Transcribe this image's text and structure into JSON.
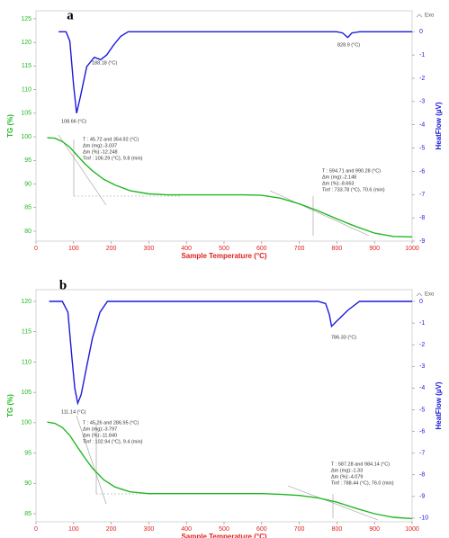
{
  "chart_data": [
    {
      "type": "line",
      "panel_label": "a",
      "xlabel": "Sample Temperature (°C)",
      "ylabel": "TG (%)",
      "y2label": "HeatFlow (µV)",
      "legend": "Exo",
      "xlim": [
        0,
        1000
      ],
      "xticks": [
        0,
        100,
        200,
        300,
        400,
        500,
        600,
        700,
        800,
        900,
        1000
      ],
      "ylim": [
        77.9,
        126.7
      ],
      "yticks": [
        80,
        85,
        90,
        95,
        100,
        105,
        110,
        115,
        120,
        125
      ],
      "y2lim": [
        -9,
        0.9
      ],
      "y2ticks": [
        0,
        -1,
        -2,
        -3,
        -4,
        -5,
        -6,
        -7,
        -8,
        -9
      ],
      "series": [
        {
          "color": "#22b822",
          "axis": "y",
          "x": [
            30,
            50,
            70,
            90,
            110,
            130,
            150,
            180,
            210,
            250,
            300,
            350,
            400,
            450,
            500,
            550,
            600,
            650,
            700,
            750,
            800,
            850,
            900,
            950,
            1000
          ],
          "values": [
            99.8,
            99.7,
            99.0,
            97.8,
            96.0,
            94.3,
            92.8,
            91.0,
            89.8,
            88.6,
            87.9,
            87.7,
            87.7,
            87.7,
            87.7,
            87.7,
            87.6,
            87.0,
            85.8,
            84.3,
            82.6,
            81.0,
            79.6,
            78.9,
            78.8
          ]
        },
        {
          "color": "#1a1adb",
          "axis": "y2",
          "x": [
            60,
            80,
            90,
            100,
            108,
            118,
            135,
            155,
            172,
            188,
            205,
            225,
            245,
            300,
            400,
            500,
            600,
            700,
            800,
            815,
            829,
            840,
            860,
            1000
          ],
          "values": [
            0,
            0,
            -0.4,
            -2.3,
            -3.5,
            -2.8,
            -1.5,
            -1.1,
            -1.2,
            -1.0,
            -0.6,
            -0.2,
            0,
            0,
            0,
            0,
            0,
            0,
            0,
            -0.05,
            -0.25,
            -0.05,
            0,
            0
          ]
        }
      ],
      "annotations": [
        [
          "108.66 (°C)"
        ],
        [
          "188.18 (°C)"
        ],
        [
          "828.9 (°C)"
        ],
        [
          "T : 45.72 and 354.92 (°C)",
          "Δm (mg):-3.037",
          "Δm (%):-12.248",
          "Tinf : 106.29 (°C), 9.8 (min)"
        ],
        [
          "T : 594.71 and 990.28 (°C)",
          "Δm (mg):-2.148",
          "Δm (%):-8.663",
          "Tinf : 733.78 (°C), 70.6 (min)"
        ]
      ]
    },
    {
      "type": "line",
      "panel_label": "b",
      "xlabel": "Sample Temperature (°C)",
      "ylabel": "TG (%)",
      "y2label": "HeatFlow (µV)",
      "legend": "Exo",
      "xlim": [
        0,
        1000
      ],
      "xticks": [
        0,
        100,
        200,
        300,
        400,
        500,
        600,
        700,
        800,
        900,
        1000
      ],
      "ylim": [
        83.66,
        121.93
      ],
      "yticks": [
        85,
        90,
        95,
        100,
        105,
        110,
        115,
        120
      ],
      "y2lim": [
        -10.17,
        0.54
      ],
      "y2ticks": [
        0,
        -1,
        -2,
        -3,
        -4,
        -5,
        -6,
        -7,
        -8,
        -9,
        -10
      ],
      "series": [
        {
          "color": "#22b822",
          "axis": "y",
          "x": [
            30,
            50,
            70,
            90,
            110,
            130,
            150,
            180,
            210,
            250,
            300,
            350,
            400,
            500,
            600,
            650,
            700,
            750,
            800,
            850,
            900,
            950,
            1000
          ],
          "values": [
            100.1,
            99.9,
            99.2,
            97.9,
            96.0,
            94.2,
            92.5,
            90.6,
            89.4,
            88.6,
            88.3,
            88.3,
            88.3,
            88.3,
            88.3,
            88.2,
            88.0,
            87.6,
            86.9,
            85.9,
            85.0,
            84.4,
            84.2
          ]
        },
        {
          "color": "#1a1adb",
          "axis": "y2",
          "x": [
            35,
            70,
            85,
            95,
            103,
            111,
            120,
            135,
            150,
            170,
            190,
            300,
            500,
            700,
            750,
            770,
            780,
            786,
            800,
            830,
            860,
            1000
          ],
          "values": [
            0,
            0,
            -0.5,
            -2.5,
            -4.0,
            -4.7,
            -4.3,
            -3.0,
            -1.7,
            -0.5,
            0,
            0,
            0,
            0,
            0,
            -0.1,
            -0.6,
            -1.15,
            -0.9,
            -0.4,
            0,
            0
          ]
        }
      ],
      "annotations": [
        [
          "111.14 (°C)"
        ],
        [
          "786.33 (°C)"
        ],
        [
          "T : 45.26 and 286.95 (°C)",
          "Δm (mg):-3.797",
          "Δm (%):-11.840",
          "Tinf : 102.94 (°C), 9.4 (min)"
        ],
        [
          "T : 587.28 and 984.14 (°C)",
          "Δm (mg):-1.33",
          "Δm (%):-4.079",
          "Tinf : 788.44 (°C), 76.0 (min)"
        ]
      ]
    }
  ]
}
